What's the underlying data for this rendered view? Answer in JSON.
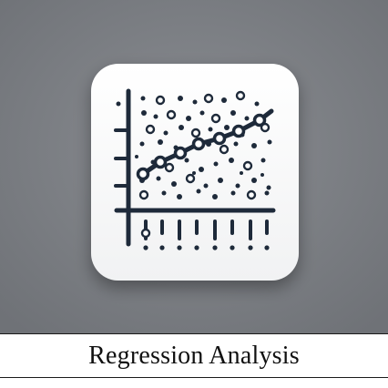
{
  "caption": "Regression Analysis",
  "icon": {
    "name": "regression-analysis-icon",
    "background_color": "#7d8085",
    "tile_color": "#ffffff",
    "ink_color": "#1e2a3a"
  }
}
